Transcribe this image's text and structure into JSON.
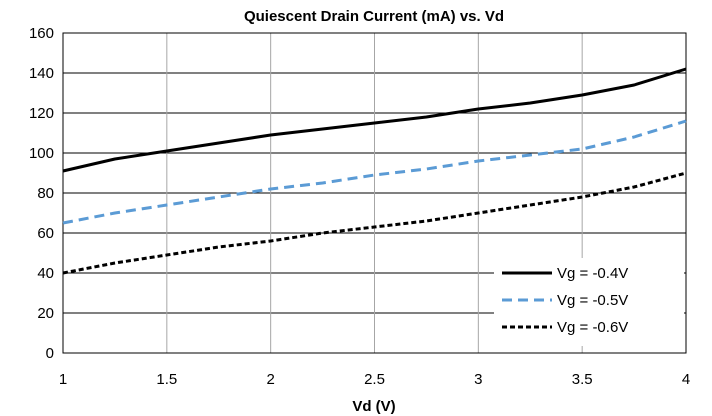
{
  "chart_data": {
    "type": "line",
    "title": "Quiescent Drain Current (mA) vs. Vd",
    "xlabel": "Vd (V)",
    "ylabel": "",
    "xlim": [
      1,
      4
    ],
    "ylim": [
      0,
      160
    ],
    "xticks": [
      1,
      1.5,
      2,
      2.5,
      3,
      3.5,
      4
    ],
    "xtick_labels": [
      "1",
      "1.5",
      "2",
      "2.5",
      "3",
      "3.5",
      "4"
    ],
    "yticks": [
      0,
      20,
      40,
      60,
      80,
      100,
      120,
      140,
      160
    ],
    "ytick_labels": [
      "0",
      "20",
      "40",
      "60",
      "80",
      "100",
      "120",
      "140",
      "160"
    ],
    "grid": true,
    "legend_position": "bottom-right",
    "series": [
      {
        "name": "Vg = -0.4V",
        "color": "#000000",
        "dash": "solid",
        "x": [
          1,
          1.25,
          1.5,
          1.75,
          2,
          2.25,
          2.5,
          2.75,
          3,
          3.25,
          3.5,
          3.75,
          4
        ],
        "y": [
          91,
          97,
          101,
          105,
          109,
          112,
          115,
          118,
          122,
          125,
          129,
          134,
          142
        ]
      },
      {
        "name": "Vg = -0.5V",
        "color": "#5b9bd5",
        "dash": "dashed",
        "x": [
          1,
          1.25,
          1.5,
          1.75,
          2,
          2.25,
          2.5,
          2.75,
          3,
          3.25,
          3.5,
          3.75,
          4
        ],
        "y": [
          65,
          70,
          74,
          78,
          82,
          85,
          89,
          92,
          96,
          99,
          102,
          108,
          116
        ]
      },
      {
        "name": "Vg = -0.6V",
        "color": "#000000",
        "dash": "dotted",
        "x": [
          1,
          1.25,
          1.5,
          1.75,
          2,
          2.25,
          2.5,
          2.75,
          3,
          3.25,
          3.5,
          3.75,
          4
        ],
        "y": [
          40,
          45,
          49,
          53,
          56,
          60,
          63,
          66,
          70,
          74,
          78,
          83,
          90
        ]
      }
    ]
  }
}
